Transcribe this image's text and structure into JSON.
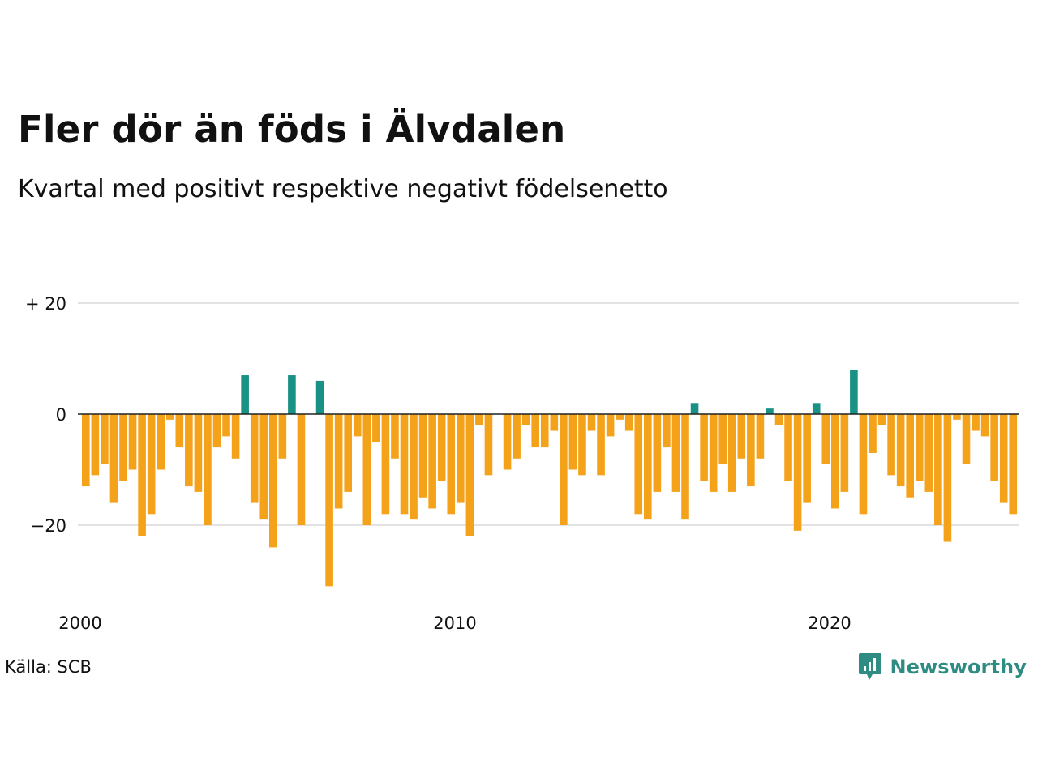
{
  "header": {
    "title": "Fler dör än föds i Älvdalen",
    "subtitle": "Kvartal med positivt respektive negativt födelsenetto"
  },
  "footer": {
    "source": "Källa: SCB",
    "brand": "Newsworthy",
    "brand_icon": "newsworthy-chat-chart-icon"
  },
  "colors": {
    "positive": "#1a9185",
    "negative": "#f5a21b",
    "grid": "#e3e3e3",
    "baseline": "#222222",
    "brand": "#2e8c82"
  },
  "chart_data": {
    "type": "bar",
    "x_start": "2000-Q1",
    "interval": "quarter",
    "ylim": [
      -33,
      20
    ],
    "y_ticks": [
      {
        "value": 20,
        "label": "+ 20"
      },
      {
        "value": 0,
        "label": "0"
      },
      {
        "value": -20,
        "label": "−20"
      }
    ],
    "x_ticks": [
      {
        "year": 2000,
        "label": "2000"
      },
      {
        "year": 2010,
        "label": "2010"
      },
      {
        "year": 2020,
        "label": "2020"
      }
    ],
    "values": [
      -13,
      -11,
      -9,
      -16,
      -12,
      -10,
      -22,
      -18,
      -10,
      -1,
      -6,
      -13,
      -14,
      -20,
      -6,
      -4,
      -8,
      7,
      -16,
      -19,
      -24,
      -8,
      7,
      -20,
      0,
      6,
      -31,
      -17,
      -14,
      -4,
      -20,
      -5,
      -18,
      -8,
      -18,
      -19,
      -15,
      -17,
      -12,
      -18,
      -16,
      -22,
      -2,
      -11,
      0,
      -10,
      -8,
      -2,
      -6,
      -6,
      -3,
      -20,
      -10,
      -11,
      -3,
      -11,
      -4,
      -1,
      -3,
      -18,
      -19,
      -14,
      -6,
      -14,
      -19,
      2,
      -12,
      -14,
      -9,
      -14,
      -8,
      -13,
      -8,
      1,
      -2,
      -12,
      -21,
      -16,
      2,
      -9,
      -17,
      -14,
      8,
      -18,
      -7,
      -2,
      -11,
      -13,
      -15,
      -12,
      -14,
      -20,
      -23,
      -1,
      -9,
      -3,
      -4,
      -12,
      -16,
      -18
    ]
  }
}
